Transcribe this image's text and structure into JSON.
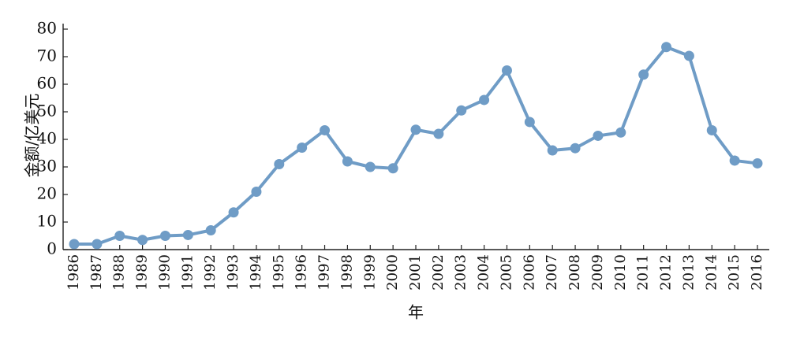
{
  "chart_data": {
    "type": "line",
    "title": "",
    "xlabel": "年",
    "ylabel": "金额/亿美元",
    "ylim": [
      0,
      80
    ],
    "yticks": [
      "0",
      "10",
      "20",
      "30",
      "40",
      "50",
      "60",
      "70",
      "80"
    ],
    "grid": false,
    "categories": [
      "1986",
      "1987",
      "1988",
      "1989",
      "1990",
      "1991",
      "1992",
      "1993",
      "1994",
      "1995",
      "1996",
      "1997",
      "1998",
      "1999",
      "2000",
      "2001",
      "2002",
      "2003",
      "2004",
      "2005",
      "2006",
      "2007",
      "2008",
      "2009",
      "2010",
      "2011",
      "2012",
      "2013",
      "2014",
      "2015",
      "2016"
    ],
    "series": [
      {
        "values": [
          2.0,
          2.0,
          5.0,
          3.5,
          5.0,
          5.3,
          7.0,
          13.5,
          21.0,
          31.0,
          37.0,
          43.3,
          32.0,
          30.0,
          29.5,
          43.5,
          42.0,
          50.5,
          54.3,
          65.0,
          46.3,
          36.0,
          36.8,
          41.3,
          42.5,
          63.5,
          73.5,
          70.3,
          43.3,
          32.3,
          31.3
        ],
        "color": "#6f9cc6"
      }
    ]
  }
}
